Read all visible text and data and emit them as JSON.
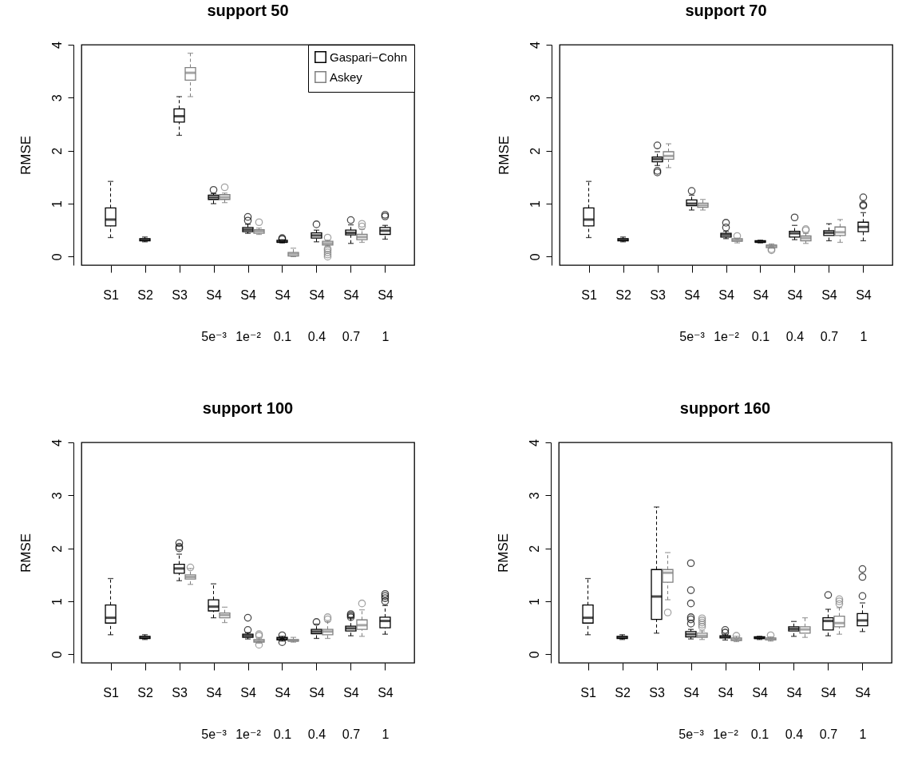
{
  "chart_data": [
    {
      "type": "box",
      "title": "support 50",
      "ylabel": "RMSE",
      "categories": [
        "S1",
        "S2",
        "S3",
        "S4\n5e⁻³",
        "S4\n1e⁻²",
        "S4\n0.1",
        "S4\n0.4",
        "S4\n0.7",
        "S4\n1"
      ],
      "ylim": [
        -0.16,
        4
      ],
      "yticks": [
        0,
        1,
        2,
        3,
        4
      ],
      "legend": "top right",
      "grid": false,
      "series": [
        {
          "name": "Gaspari−Cohn",
          "color": "#000000",
          "boxes": [
            {
              "low": 0.36,
              "q1": 0.58,
              "median": 0.7,
              "q3": 0.92,
              "high": 1.42
            },
            {
              "low": 0.28,
              "q1": 0.3,
              "median": 0.32,
              "q3": 0.34,
              "high": 0.37
            },
            {
              "low": 2.29,
              "q1": 2.54,
              "median": 2.65,
              "q3": 2.79,
              "high": 3.02
            },
            {
              "low": 1.0,
              "q1": 1.08,
              "median": 1.12,
              "q3": 1.16,
              "high": 1.19,
              "outliers": [
                1.26
              ]
            },
            {
              "low": 0.44,
              "q1": 0.47,
              "median": 0.51,
              "q3": 0.55,
              "high": 0.61,
              "outliers": [
                0.68,
                0.75
              ]
            },
            {
              "low": 0.26,
              "q1": 0.27,
              "median": 0.28,
              "q3": 0.31,
              "high": 0.32,
              "outliers": [
                0.33,
                0.35
              ]
            },
            {
              "low": 0.28,
              "q1": 0.35,
              "median": 0.4,
              "q3": 0.45,
              "high": 0.5,
              "outliers": [
                0.61
              ]
            },
            {
              "low": 0.25,
              "q1": 0.41,
              "median": 0.45,
              "q3": 0.5,
              "high": 0.6,
              "outliers": [
                0.69
              ]
            },
            {
              "low": 0.33,
              "q1": 0.42,
              "median": 0.49,
              "q3": 0.55,
              "high": 0.59,
              "outliers": [
                0.76,
                0.79
              ]
            }
          ]
        },
        {
          "name": "Askey",
          "color": "#808080",
          "boxes": [
            null,
            null,
            {
              "low": 3.02,
              "q1": 3.33,
              "median": 3.47,
              "q3": 3.57,
              "high": 3.84
            },
            {
              "low": 1.02,
              "q1": 1.08,
              "median": 1.12,
              "q3": 1.17,
              "high": 1.2,
              "outliers": [
                1.31
              ]
            },
            {
              "low": 0.42,
              "q1": 0.44,
              "median": 0.48,
              "q3": 0.51,
              "high": 0.54,
              "outliers": [
                0.65
              ]
            },
            {
              "low": 0.0,
              "q1": 0.01,
              "median": 0.05,
              "q3": 0.08,
              "high": 0.16
            },
            {
              "low": 0.2,
              "q1": 0.22,
              "median": 0.25,
              "q3": 0.29,
              "high": 0.31,
              "outliers": [
                0.0,
                0.04,
                0.08,
                0.12,
                0.15,
                0.36
              ]
            },
            {
              "low": 0.27,
              "q1": 0.32,
              "median": 0.37,
              "q3": 0.42,
              "high": 0.52,
              "outliers": [
                0.57,
                0.62
              ]
            },
            null
          ]
        }
      ]
    },
    {
      "type": "box",
      "title": "support 70",
      "ylabel": "RMSE",
      "categories": [
        "S1",
        "S2",
        "S3",
        "S4\n5e⁻³",
        "S4\n1e⁻²",
        "S4\n0.1",
        "S4\n0.4",
        "S4\n0.7",
        "S4\n1"
      ],
      "ylim": [
        -0.16,
        4
      ],
      "yticks": [
        0,
        1,
        2,
        3,
        4
      ],
      "grid": false,
      "series": [
        {
          "color": "#000000",
          "boxes": [
            {
              "low": 0.36,
              "q1": 0.58,
              "median": 0.7,
              "q3": 0.92,
              "high": 1.42
            },
            {
              "low": 0.28,
              "q1": 0.3,
              "median": 0.32,
              "q3": 0.34,
              "high": 0.37
            },
            {
              "low": 1.72,
              "q1": 1.79,
              "median": 1.84,
              "q3": 1.88,
              "high": 1.98,
              "outliers": [
                1.59,
                1.62,
                2.1
              ]
            },
            {
              "low": 0.88,
              "q1": 0.96,
              "median": 1.0,
              "q3": 1.07,
              "high": 1.16,
              "outliers": [
                1.24
              ]
            },
            {
              "low": 0.34,
              "q1": 0.37,
              "median": 0.41,
              "q3": 0.44,
              "high": 0.48,
              "outliers": [
                0.55,
                0.64
              ]
            },
            {
              "low": 0.26,
              "q1": 0.27,
              "median": 0.28,
              "q3": 0.3,
              "high": 0.31
            },
            {
              "low": 0.32,
              "q1": 0.37,
              "median": 0.44,
              "q3": 0.48,
              "high": 0.59,
              "outliers": [
                0.74
              ]
            },
            {
              "low": 0.3,
              "q1": 0.4,
              "median": 0.45,
              "q3": 0.49,
              "high": 0.62
            },
            {
              "low": 0.3,
              "q1": 0.47,
              "median": 0.56,
              "q3": 0.65,
              "high": 0.83,
              "outliers": [
                0.96,
                0.98,
                1.12
              ]
            }
          ]
        },
        {
          "color": "#808080",
          "boxes": [
            null,
            null,
            {
              "low": 1.68,
              "q1": 1.84,
              "median": 1.9,
              "q3": 1.98,
              "high": 2.13
            },
            {
              "low": 0.88,
              "q1": 0.93,
              "median": 0.97,
              "q3": 1.01,
              "high": 1.08
            },
            {
              "low": 0.26,
              "q1": 0.29,
              "median": 0.31,
              "q3": 0.34,
              "high": 0.35,
              "outliers": [
                0.39
              ]
            },
            {
              "low": 0.16,
              "q1": 0.17,
              "median": 0.2,
              "q3": 0.22,
              "high": 0.24,
              "outliers": [
                0.12,
                0.14
              ]
            },
            {
              "low": 0.25,
              "q1": 0.3,
              "median": 0.35,
              "q3": 0.39,
              "high": 0.44,
              "outliers": [
                0.5,
                0.52
              ]
            },
            {
              "low": 0.27,
              "q1": 0.4,
              "median": 0.46,
              "q3": 0.56,
              "high": 0.7
            },
            null
          ]
        }
      ]
    },
    {
      "type": "box",
      "title": "support 100",
      "ylabel": "RMSE",
      "categories": [
        "S1",
        "S2",
        "S3",
        "S4\n5e⁻³",
        "S4\n1e⁻²",
        "S4\n0.1",
        "S4\n0.4",
        "S4\n0.7",
        "S4\n1"
      ],
      "ylim": [
        -0.16,
        4
      ],
      "yticks": [
        0,
        1,
        2,
        3,
        4
      ],
      "grid": false,
      "series": [
        {
          "color": "#000000",
          "boxes": [
            {
              "low": 0.37,
              "q1": 0.59,
              "median": 0.69,
              "q3": 0.93,
              "high": 1.43
            },
            {
              "low": 0.28,
              "q1": 0.3,
              "median": 0.32,
              "q3": 0.34,
              "high": 0.37
            },
            {
              "low": 1.39,
              "q1": 1.53,
              "median": 1.62,
              "q3": 1.7,
              "high": 1.89,
              "outliers": [
                2.0,
                2.03,
                2.1
              ]
            },
            {
              "low": 0.69,
              "q1": 0.82,
              "median": 0.9,
              "q3": 1.03,
              "high": 1.33
            },
            {
              "low": 0.29,
              "q1": 0.32,
              "median": 0.35,
              "q3": 0.38,
              "high": 0.41,
              "outliers": [
                0.46,
                0.69
              ]
            },
            {
              "low": 0.25,
              "q1": 0.27,
              "median": 0.3,
              "q3": 0.32,
              "high": 0.34,
              "outliers": [
                0.23,
                0.36
              ]
            },
            {
              "low": 0.3,
              "q1": 0.39,
              "median": 0.43,
              "q3": 0.47,
              "high": 0.57,
              "outliers": [
                0.61
              ]
            },
            {
              "low": 0.35,
              "q1": 0.44,
              "median": 0.49,
              "q3": 0.53,
              "high": 0.69,
              "outliers": [
                0.7,
                0.73,
                0.76
              ]
            },
            {
              "low": 0.38,
              "q1": 0.5,
              "median": 0.63,
              "q3": 0.7,
              "high": 0.92,
              "outliers": [
                1.0,
                1.06,
                1.1,
                1.14
              ]
            }
          ]
        },
        {
          "color": "#808080",
          "boxes": [
            null,
            null,
            {
              "low": 1.32,
              "q1": 1.42,
              "median": 1.46,
              "q3": 1.5,
              "high": 1.62,
              "outliers": [
                1.64
              ]
            },
            {
              "low": 0.6,
              "q1": 0.69,
              "median": 0.74,
              "q3": 0.78,
              "high": 0.89
            },
            {
              "low": 0.21,
              "q1": 0.23,
              "median": 0.25,
              "q3": 0.28,
              "high": 0.31,
              "outliers": [
                0.18,
                0.35,
                0.38
              ]
            },
            {
              "low": 0.23,
              "q1": 0.25,
              "median": 0.26,
              "q3": 0.28,
              "high": 0.32
            },
            {
              "low": 0.3,
              "q1": 0.37,
              "median": 0.43,
              "q3": 0.47,
              "high": 0.62,
              "outliers": [
                0.66,
                0.7
              ]
            },
            {
              "low": 0.34,
              "q1": 0.47,
              "median": 0.55,
              "q3": 0.65,
              "high": 0.84,
              "outliers": [
                0.96
              ]
            },
            null
          ]
        }
      ]
    },
    {
      "type": "box",
      "title": "support 160",
      "ylabel": "RMSE",
      "categories": [
        "S1",
        "S2",
        "S3",
        "S4\n5e⁻³",
        "S4\n1e⁻²",
        "S4\n0.1",
        "S4\n0.4",
        "S4\n0.7",
        "S4\n1"
      ],
      "ylim": [
        -0.16,
        4
      ],
      "yticks": [
        0,
        1,
        2,
        3,
        4
      ],
      "grid": false,
      "series": [
        {
          "color": "#000000",
          "boxes": [
            {
              "low": 0.37,
              "q1": 0.59,
              "median": 0.69,
              "q3": 0.93,
              "high": 1.43
            },
            {
              "low": 0.28,
              "q1": 0.3,
              "median": 0.32,
              "q3": 0.34,
              "high": 0.37
            },
            {
              "low": 0.4,
              "q1": 0.66,
              "median": 1.09,
              "q3": 1.6,
              "high": 2.78
            },
            {
              "low": 0.29,
              "q1": 0.33,
              "median": 0.38,
              "q3": 0.43,
              "high": 0.47,
              "outliers": [
                0.58,
                0.66,
                0.7,
                0.96,
                1.21,
                1.72
              ]
            },
            {
              "low": 0.27,
              "q1": 0.31,
              "median": 0.33,
              "q3": 0.35,
              "high": 0.38,
              "outliers": [
                0.41,
                0.46
              ]
            },
            {
              "low": 0.28,
              "q1": 0.3,
              "median": 0.31,
              "q3": 0.33,
              "high": 0.34
            },
            {
              "low": 0.34,
              "q1": 0.44,
              "median": 0.48,
              "q3": 0.52,
              "high": 0.62
            },
            {
              "low": 0.35,
              "q1": 0.46,
              "median": 0.63,
              "q3": 0.69,
              "high": 0.85,
              "outliers": [
                1.12
              ]
            },
            {
              "low": 0.43,
              "q1": 0.54,
              "median": 0.64,
              "q3": 0.77,
              "high": 0.97,
              "outliers": [
                1.1,
                1.46,
                1.61
              ]
            }
          ]
        },
        {
          "color": "#808080",
          "boxes": [
            null,
            null,
            {
              "low": 1.03,
              "q1": 1.36,
              "median": 1.54,
              "q3": 1.6,
              "high": 1.92,
              "outliers": [
                0.79
              ]
            },
            {
              "low": 0.28,
              "q1": 0.32,
              "median": 0.35,
              "q3": 0.4,
              "high": 0.44,
              "outliers": [
                0.52,
                0.56,
                0.6,
                0.64,
                0.68
              ]
            },
            {
              "low": 0.24,
              "q1": 0.26,
              "median": 0.28,
              "q3": 0.31,
              "high": 0.34,
              "outliers": [
                0.35
              ]
            },
            {
              "low": 0.25,
              "q1": 0.27,
              "median": 0.29,
              "q3": 0.31,
              "high": 0.33,
              "outliers": [
                0.36
              ]
            },
            {
              "low": 0.32,
              "q1": 0.4,
              "median": 0.47,
              "q3": 0.52,
              "high": 0.69
            },
            {
              "low": 0.38,
              "q1": 0.52,
              "median": 0.59,
              "q3": 0.72,
              "high": 0.88,
              "outliers": [
                0.95,
                1.0,
                1.04
              ]
            },
            null
          ]
        }
      ]
    }
  ]
}
